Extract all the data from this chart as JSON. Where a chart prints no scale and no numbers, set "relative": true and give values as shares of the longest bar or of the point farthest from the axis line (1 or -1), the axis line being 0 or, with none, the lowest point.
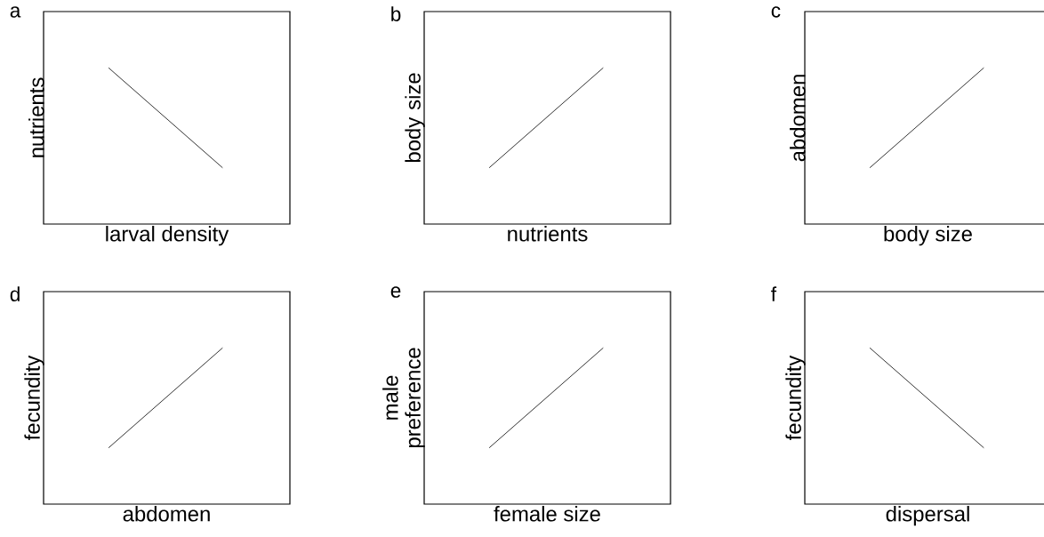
{
  "chart_data": [
    {
      "type": "line",
      "title": "a",
      "xlabel": "larval density",
      "ylabel": "nutrients",
      "categories": [
        null,
        null
      ],
      "values": [
        1,
        0.36
      ],
      "color": "#000000",
      "relative": true
    },
    {
      "type": "line",
      "title": "b",
      "xlabel": "nutrients",
      "ylabel": "body size",
      "categories": [
        null,
        null
      ],
      "values": [
        0.36,
        1
      ],
      "color": "#000000",
      "relative": true
    },
    {
      "type": "line",
      "title": "c",
      "xlabel": "body size",
      "ylabel": "abdomen",
      "categories": [
        null,
        null
      ],
      "values": [
        0.36,
        1
      ],
      "color": "#000000",
      "relative": true
    },
    {
      "type": "line",
      "title": "d",
      "xlabel": "abdomen",
      "ylabel": "fecundity",
      "categories": [
        null,
        null
      ],
      "values": [
        0.36,
        1
      ],
      "color": "#000000",
      "relative": true
    },
    {
      "type": "line",
      "title": "e",
      "xlabel": "female size",
      "ylabel": "male preference",
      "categories": [
        null,
        null
      ],
      "values": [
        0.36,
        1
      ],
      "color": "#000000",
      "relative": true
    },
    {
      "type": "line",
      "title": "f",
      "xlabel": "dispersal",
      "ylabel": "fecundity",
      "categories": [
        null,
        null
      ],
      "values": [
        1,
        0.36
      ],
      "color": "#000000",
      "relative": true
    }
  ]
}
